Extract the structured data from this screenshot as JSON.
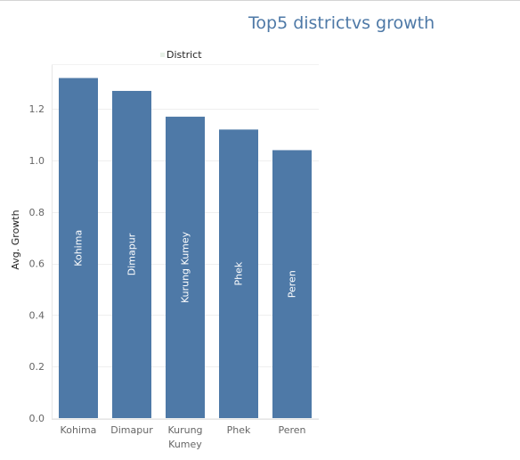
{
  "title": "Top5 districtvs growth",
  "legend": {
    "label": "District"
  },
  "colors": {
    "bar": "#4e79a7",
    "title": "#4e79a7",
    "gridline": "#efefef",
    "axis_text": "#666666",
    "bar_label": "#ffffff"
  },
  "chart_data": {
    "type": "bar",
    "title": "Top5 districtvs growth",
    "xlabel": "",
    "ylabel": "Avg. Growth",
    "categories": [
      "Kohima",
      "Dimapur",
      "Kurung Kumey",
      "Phek",
      "Peren"
    ],
    "category_tick_lines": [
      [
        "Kohima"
      ],
      [
        "Dimapur"
      ],
      [
        "Kurung",
        "Kumey"
      ],
      [
        "Phek"
      ],
      [
        "Peren"
      ]
    ],
    "values": [
      1.32,
      1.27,
      1.17,
      1.12,
      1.04
    ],
    "ylim": [
      0,
      1.4
    ],
    "yticks": [
      "0.0",
      "0.2",
      "0.4",
      "0.6",
      "0.8",
      "1.0",
      "1.2"
    ],
    "grid": true,
    "legend_position": "top",
    "bar_labels": [
      "Kohima",
      "Dimapur",
      "Kurung Kumey",
      "Phek",
      "Peren"
    ]
  }
}
